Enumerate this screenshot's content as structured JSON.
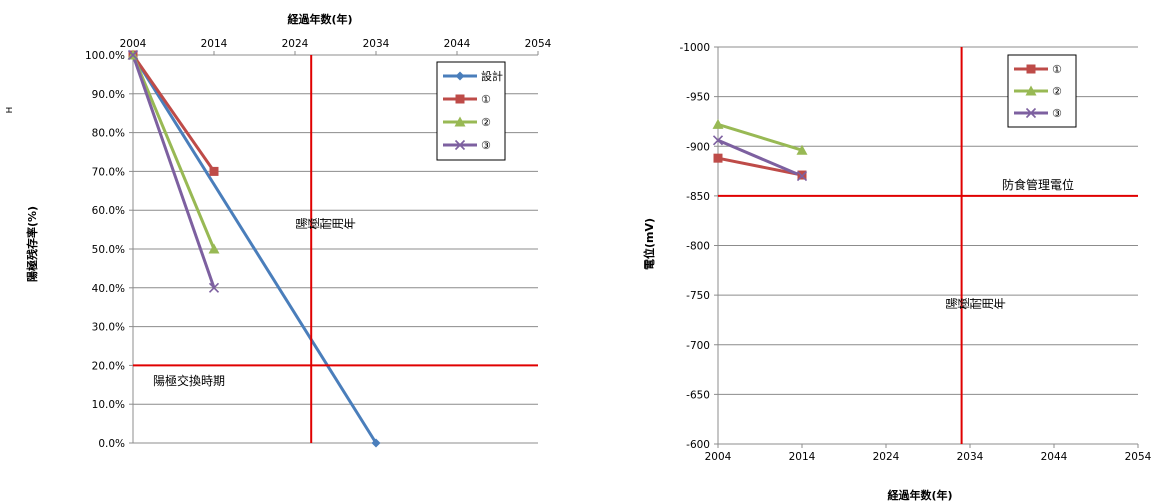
{
  "chart_data": [
    {
      "type": "line",
      "title": "",
      "xlabel": "経過年数(年)",
      "ylabel": "陽極残存率(%)",
      "stray_label": "н",
      "x_ticks": [
        2004,
        2014,
        2024,
        2034,
        2044,
        2054
      ],
      "y_ticks": [
        "100.0%",
        "90.0%",
        "80.0%",
        "70.0%",
        "60.0%",
        "50.0%",
        "40.0%",
        "30.0%",
        "20.0%",
        "10.0%",
        "0.0%"
      ],
      "xlim": [
        2004,
        2054
      ],
      "ylim": [
        0,
        100
      ],
      "x_axis_position": "top",
      "grid": "horizontal",
      "legend_position": "top-right",
      "series": [
        {
          "name": "設計",
          "color": "#4a7ebb",
          "marker": "diamond",
          "x": [
            2004,
            2034
          ],
          "y": [
            100,
            0
          ]
        },
        {
          "name": "①",
          "color": "#be4b48",
          "marker": "square",
          "x": [
            2004,
            2014
          ],
          "y": [
            100,
            70
          ]
        },
        {
          "name": "②",
          "color": "#98b954",
          "marker": "triangle",
          "x": [
            2004,
            2014
          ],
          "y": [
            100,
            50
          ]
        },
        {
          "name": "③",
          "color": "#7d60a0",
          "marker": "x",
          "x": [
            2004,
            2014
          ],
          "y": [
            100,
            40
          ]
        }
      ],
      "reference_lines": [
        {
          "orientation": "vertical",
          "value": 2026,
          "label": "陽極耐用年",
          "color": "#e00000"
        },
        {
          "orientation": "horizontal",
          "value": 20,
          "label": "陽極交換時期",
          "color": "#e00000"
        }
      ]
    },
    {
      "type": "line",
      "title": "",
      "xlabel": "経過年数(年)",
      "ylabel": "電位(mV)",
      "x_ticks": [
        2004,
        2014,
        2024,
        2034,
        2044,
        2054
      ],
      "y_ticks": [
        "-1000",
        "-950",
        "-900",
        "-850",
        "-800",
        "-750",
        "-700",
        "-650",
        "-600"
      ],
      "xlim": [
        2004,
        2054
      ],
      "ylim": [
        -1000,
        -600
      ],
      "y_reversed": true,
      "grid": "horizontal",
      "legend_position": "top-right",
      "series": [
        {
          "name": "①",
          "color": "#be4b48",
          "marker": "square",
          "x": [
            2004,
            2014
          ],
          "y": [
            -888,
            -871
          ]
        },
        {
          "name": "②",
          "color": "#98b954",
          "marker": "triangle",
          "x": [
            2004,
            2014
          ],
          "y": [
            -922,
            -896
          ]
        },
        {
          "name": "③",
          "color": "#7d60a0",
          "marker": "x",
          "x": [
            2004,
            2014
          ],
          "y": [
            -906,
            -870
          ]
        }
      ],
      "reference_lines": [
        {
          "orientation": "horizontal",
          "value": -850,
          "label": "防食管理電位",
          "color": "#e00000"
        },
        {
          "orientation": "vertical",
          "value": 2033,
          "label": "陽極耐用年",
          "color": "#e00000"
        }
      ]
    }
  ]
}
